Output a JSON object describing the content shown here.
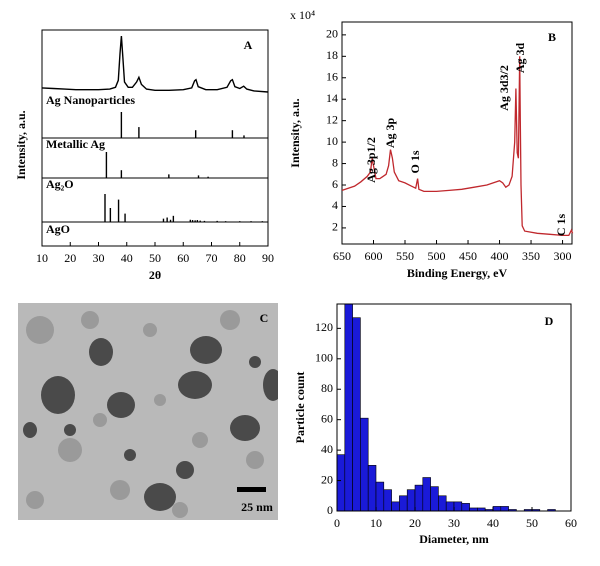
{
  "chart_data": [
    {
      "type": "line",
      "label": "A",
      "xlabel": "2θ",
      "ylabel": "Intensity, a.u.",
      "xlim": [
        10,
        90
      ],
      "xticks": [
        10,
        20,
        30,
        40,
        50,
        60,
        70,
        80,
        90
      ],
      "ylim": [
        0,
        100
      ],
      "series": [
        {
          "name": "Ag Nanoparticles",
          "style": "line",
          "color": "#000000",
          "x": [
            10,
            14,
            18,
            22,
            26,
            30,
            34,
            36,
            37,
            37.6,
            38.1,
            38.6,
            39.2,
            40.5,
            42,
            43.5,
            44.3,
            45.2,
            47,
            50,
            55,
            60,
            63,
            64,
            64.5,
            65.3,
            68,
            72,
            75.5,
            76.8,
            77.4,
            78.3,
            80,
            81.4,
            82.5,
            85,
            90
          ],
          "values": [
            12,
            11,
            10,
            9,
            9,
            9,
            10,
            13,
            25,
            70,
            100,
            65,
            22,
            13,
            13,
            22,
            30,
            18,
            10,
            8,
            8,
            9,
            12,
            24,
            26,
            14,
            9,
            9,
            13,
            24,
            26,
            14,
            11,
            15,
            10,
            7,
            5
          ]
        },
        {
          "name": "Metallic Ag",
          "style": "stick",
          "color": "#000000",
          "x": [
            38.1,
            44.3,
            64.4,
            77.4,
            81.5
          ],
          "values": [
            100,
            42,
            30,
            30,
            10
          ]
        },
        {
          "name": "Ag₂O",
          "style": "stick",
          "color": "#000000",
          "x": [
            32.8,
            38.1,
            54.9,
            65.4,
            68.8
          ],
          "values": [
            100,
            30,
            14,
            10,
            5
          ]
        },
        {
          "name": "AgO",
          "style": "stick",
          "color": "#000000",
          "x": [
            32.3,
            34.2,
            37.1,
            39.4,
            53.0,
            54.3,
            55.5,
            56.5,
            62.5,
            63.3,
            64.2,
            65.0,
            66.0,
            67.5,
            72.0,
            75.0,
            80.0,
            84.0,
            88.0
          ],
          "values": [
            100,
            50,
            80,
            30,
            12,
            16,
            8,
            22,
            8,
            7,
            6,
            7,
            5,
            4,
            4,
            3,
            3,
            3,
            3
          ]
        }
      ]
    },
    {
      "type": "line",
      "label": "B",
      "xlabel": "Binding Energy, eV",
      "ylabel": "Intensity, a.u.",
      "multiplier_label": "x 10⁴",
      "xlim": [
        650,
        285
      ],
      "xticks": [
        650,
        600,
        550,
        500,
        450,
        400,
        350,
        300
      ],
      "ylim": [
        0.5,
        21.2
      ],
      "yticks": [
        2,
        4,
        6,
        8,
        10,
        12,
        14,
        16,
        18,
        20
      ],
      "annotations": [
        "Ag 3p1/2",
        "Ag 3p",
        "O 1s",
        "Ag 3d3/2",
        "Ag 3d",
        "C 1s"
      ],
      "series": [
        {
          "color": "#c0282d",
          "x": [
            650,
            640,
            630,
            620,
            610,
            605,
            602,
            600,
            596,
            590,
            580,
            576,
            573,
            570,
            567,
            560,
            550,
            540,
            533,
            530,
            528,
            520,
            500,
            480,
            460,
            440,
            420,
            400,
            395,
            390,
            385,
            380,
            376,
            374,
            372,
            370,
            368,
            367,
            366,
            364,
            360,
            340,
            320,
            300,
            290,
            286,
            284
          ],
          "values": [
            5.5,
            5.7,
            5.9,
            6.3,
            6.8,
            7.2,
            8.5,
            7.8,
            6.6,
            6.6,
            7,
            7.8,
            9.3,
            8.5,
            7.2,
            6.4,
            6.2,
            5.9,
            5.7,
            6.6,
            5.6,
            5.4,
            5.4,
            5.5,
            5.6,
            5.8,
            6.0,
            6.4,
            6.2,
            5.8,
            6.0,
            6.8,
            10,
            15,
            9,
            8.5,
            18,
            12,
            6,
            2.2,
            1.7,
            1.5,
            1.4,
            1.3,
            1.3,
            1.8,
            1.5
          ]
        }
      ]
    },
    {
      "type": "image",
      "label": "C",
      "scale_bar_label": "25 nm"
    },
    {
      "type": "histogram",
      "label": "D",
      "xlabel": "Diameter, nm",
      "ylabel": "Particle count",
      "color": "#1a1ad8",
      "xlim": [
        0,
        60
      ],
      "xticks": [
        0,
        10,
        20,
        30,
        40,
        50,
        60
      ],
      "ylim": [
        0,
        136
      ],
      "yticks": [
        0,
        20,
        40,
        60,
        80,
        100,
        120
      ],
      "bins": [
        0,
        2,
        4,
        6,
        8,
        10,
        12,
        14,
        16,
        18,
        20,
        22,
        24,
        26,
        28,
        30,
        32,
        34,
        36,
        38,
        40,
        42,
        44,
        46,
        48,
        50,
        52,
        54,
        56,
        58,
        60
      ],
      "values": [
        37,
        140,
        127,
        61,
        30,
        19,
        14,
        6,
        10,
        14,
        17,
        22,
        16,
        10,
        6,
        6,
        5,
        2,
        2,
        1,
        3,
        3,
        1,
        0,
        1,
        1,
        0,
        1,
        0,
        0
      ]
    }
  ]
}
